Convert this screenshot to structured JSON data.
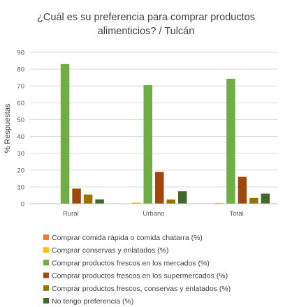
{
  "chart_data": {
    "type": "bar",
    "title": "¿Cuál es su preferencia para comprar productos alimenticios? / Tulcán",
    "title_lines": [
      "¿Cuál es su preferencia para comprar productos",
      "alimenticios? / Tulcán"
    ],
    "xlabel": "",
    "ylabel": "% Respuestas",
    "ylim": [
      0,
      90
    ],
    "yticks": [
      0,
      10,
      20,
      30,
      40,
      50,
      60,
      70,
      80,
      90
    ],
    "grid": true,
    "legend_position": "bottom",
    "categories": [
      "Rural",
      "Urbano",
      "Total"
    ],
    "series": [
      {
        "name": "Comprar comida rápida o comida chatarra (%)",
        "color": "#ED7D31",
        "values": [
          0,
          0,
          0
        ]
      },
      {
        "name": "Comprar conservas y enlatados (%)",
        "color": "#FFC000",
        "values": [
          0,
          0.7,
          0.5
        ]
      },
      {
        "name": "Comprar productos frescos en los mercados (%)",
        "color": "#70AD47",
        "values": [
          83,
          70.5,
          74.3
        ]
      },
      {
        "name": "Comprar productos frescos en los supermercados (%)",
        "color": "#9E480E",
        "values": [
          9,
          18.9,
          16
        ]
      },
      {
        "name": "Comprar productos frescos, conservas y enlatados (%)",
        "color": "#997300",
        "values": [
          5.5,
          2.5,
          3.4
        ]
      },
      {
        "name": "No tengo preferencia (%)",
        "color": "#43682B",
        "values": [
          2.6,
          7.4,
          6
        ]
      }
    ]
  }
}
